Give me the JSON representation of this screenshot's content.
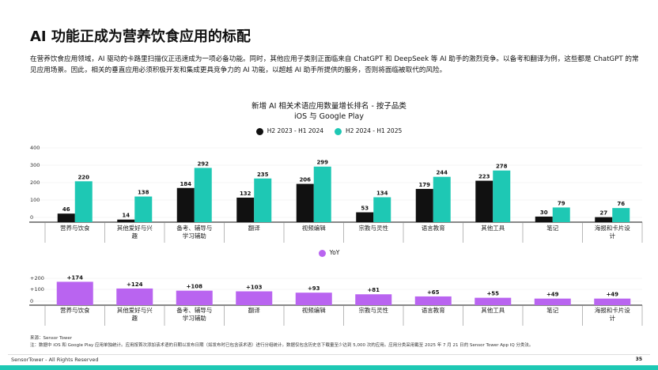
{
  "title": "AI 功能正成为营养饮食应用的标配",
  "intro": "在营养饮食应用领域，AI 驱动的卡路里扫描仪正迅速成为一项必备功能。同时，其他应用子类别正面临来自 ChatGPT 和 DeepSeek 等 AI 助手的激烈竞争。以备考和翻译为例，这些都是 ChatGPT 的常见应用场景。因此，相关的垂直应用必须积极开发和集成更具竞争力的 AI 功能，以超越 AI 助手所提供的服务，否则将面临被取代的风险。",
  "chart_data": [
    {
      "type": "bar",
      "title": "新增 AI 相关术语应用数量增长排名 - 按子品类",
      "subtitle": "iOS 与 Google Play",
      "categories": [
        "营养与饮食",
        "其他爱好与兴趣",
        "备考、辅导与学习辅助",
        "翻译",
        "视频编辑",
        "宗教与灵性",
        "语言教育",
        "其他工具",
        "笔记",
        "海报和卡片设计"
      ],
      "series": [
        {
          "name": "H2 2023 - H1 2024",
          "color": "#111111",
          "values": [
            46,
            14,
            184,
            132,
            206,
            53,
            179,
            223,
            30,
            27
          ]
        },
        {
          "name": "H2 2024 - H1 2025",
          "color": "#1ec8b4",
          "values": [
            220,
            138,
            292,
            235,
            299,
            134,
            244,
            278,
            79,
            76
          ]
        }
      ],
      "ylim": [
        0,
        400
      ],
      "yticks": [
        "400",
        "300",
        "200",
        "100",
        "0"
      ],
      "legend": "top"
    },
    {
      "type": "bar",
      "categories": [
        "营养与饮食",
        "其他爱好与兴趣",
        "备考、辅导与学习辅助",
        "翻译",
        "视频编辑",
        "宗教与灵性",
        "语言教育",
        "其他工具",
        "笔记",
        "海报和卡片设计"
      ],
      "series": [
        {
          "name": "YoY",
          "color": "#b964f0",
          "values": [
            174,
            124,
            108,
            103,
            93,
            81,
            65,
            55,
            49,
            49
          ]
        }
      ],
      "labels": [
        "+174",
        "+124",
        "+108",
        "+103",
        "+93",
        "+81",
        "+65",
        "+55",
        "+49",
        "+49"
      ],
      "ylim": [
        0,
        200
      ],
      "yticks": [
        "+200",
        "+100",
        "0"
      ],
      "legend": "top"
    }
  ],
  "source": "来源：Sensor Tower",
  "note": "注：数据中 iOS 和 Google Play 应用单独统计。应用按首次添加该术语的日期以发布日期（如发布时已包含该术语）进行分组统计。数据仅包含历史总下载量至少达到 5,000 次的应用。应用分类采用截至 2025 年 7 月 21 日的 Sensor Tower App IQ 分类法。",
  "footer": {
    "brand": "SensorTower - All Rights Reserved",
    "page": "35"
  }
}
